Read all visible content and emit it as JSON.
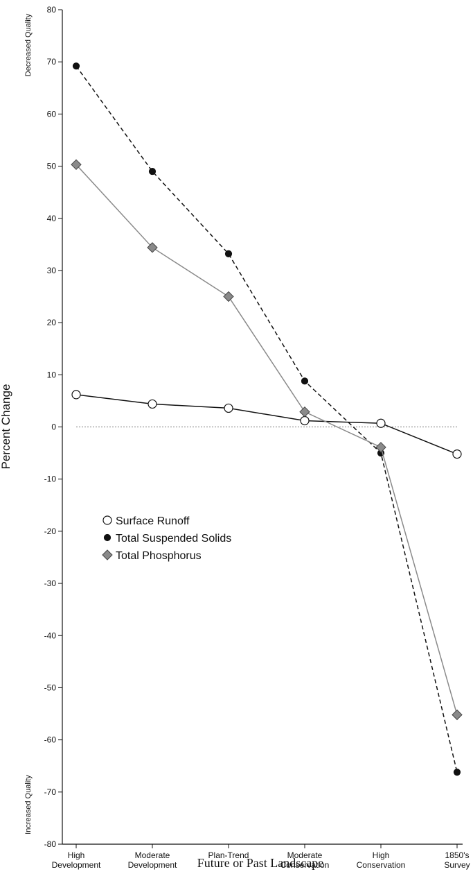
{
  "chart_data": {
    "type": "line",
    "ylabel": "Percent Change",
    "xlabel": "Future or Past Landscape",
    "top_note": "Decreased Quality",
    "bottom_note": "Increased Quality",
    "categories": [
      "High Development",
      "Moderate Development",
      "Plan-Trend",
      "Moderate Conservation",
      "High Conservation",
      "1850's Survey"
    ],
    "series": [
      {
        "name": "Surface Runoff",
        "color": "#111111",
        "marker": "circle-open",
        "dash": false,
        "values": [
          6.2,
          4.4,
          3.6,
          1.2,
          0.7,
          -5.2
        ]
      },
      {
        "name": "Total Suspended Solids",
        "color": "#111111",
        "marker": "circle-filled",
        "dash": true,
        "values": [
          69.2,
          49,
          33.2,
          8.8,
          -5,
          -66.2
        ]
      },
      {
        "name": "Total Phosphorus",
        "color": "#8a8a8a",
        "marker": "diamond",
        "dash": false,
        "values": [
          50.3,
          34.4,
          25,
          2.9,
          -3.9,
          -55.2
        ]
      }
    ],
    "ylim": [
      -80,
      80
    ],
    "yticks": [
      -80,
      -70,
      -60,
      -50,
      -40,
      -30,
      -20,
      -10,
      0,
      10,
      20,
      30,
      40,
      50,
      60,
      70,
      80
    ],
    "zero_line": true,
    "legend": "left"
  }
}
